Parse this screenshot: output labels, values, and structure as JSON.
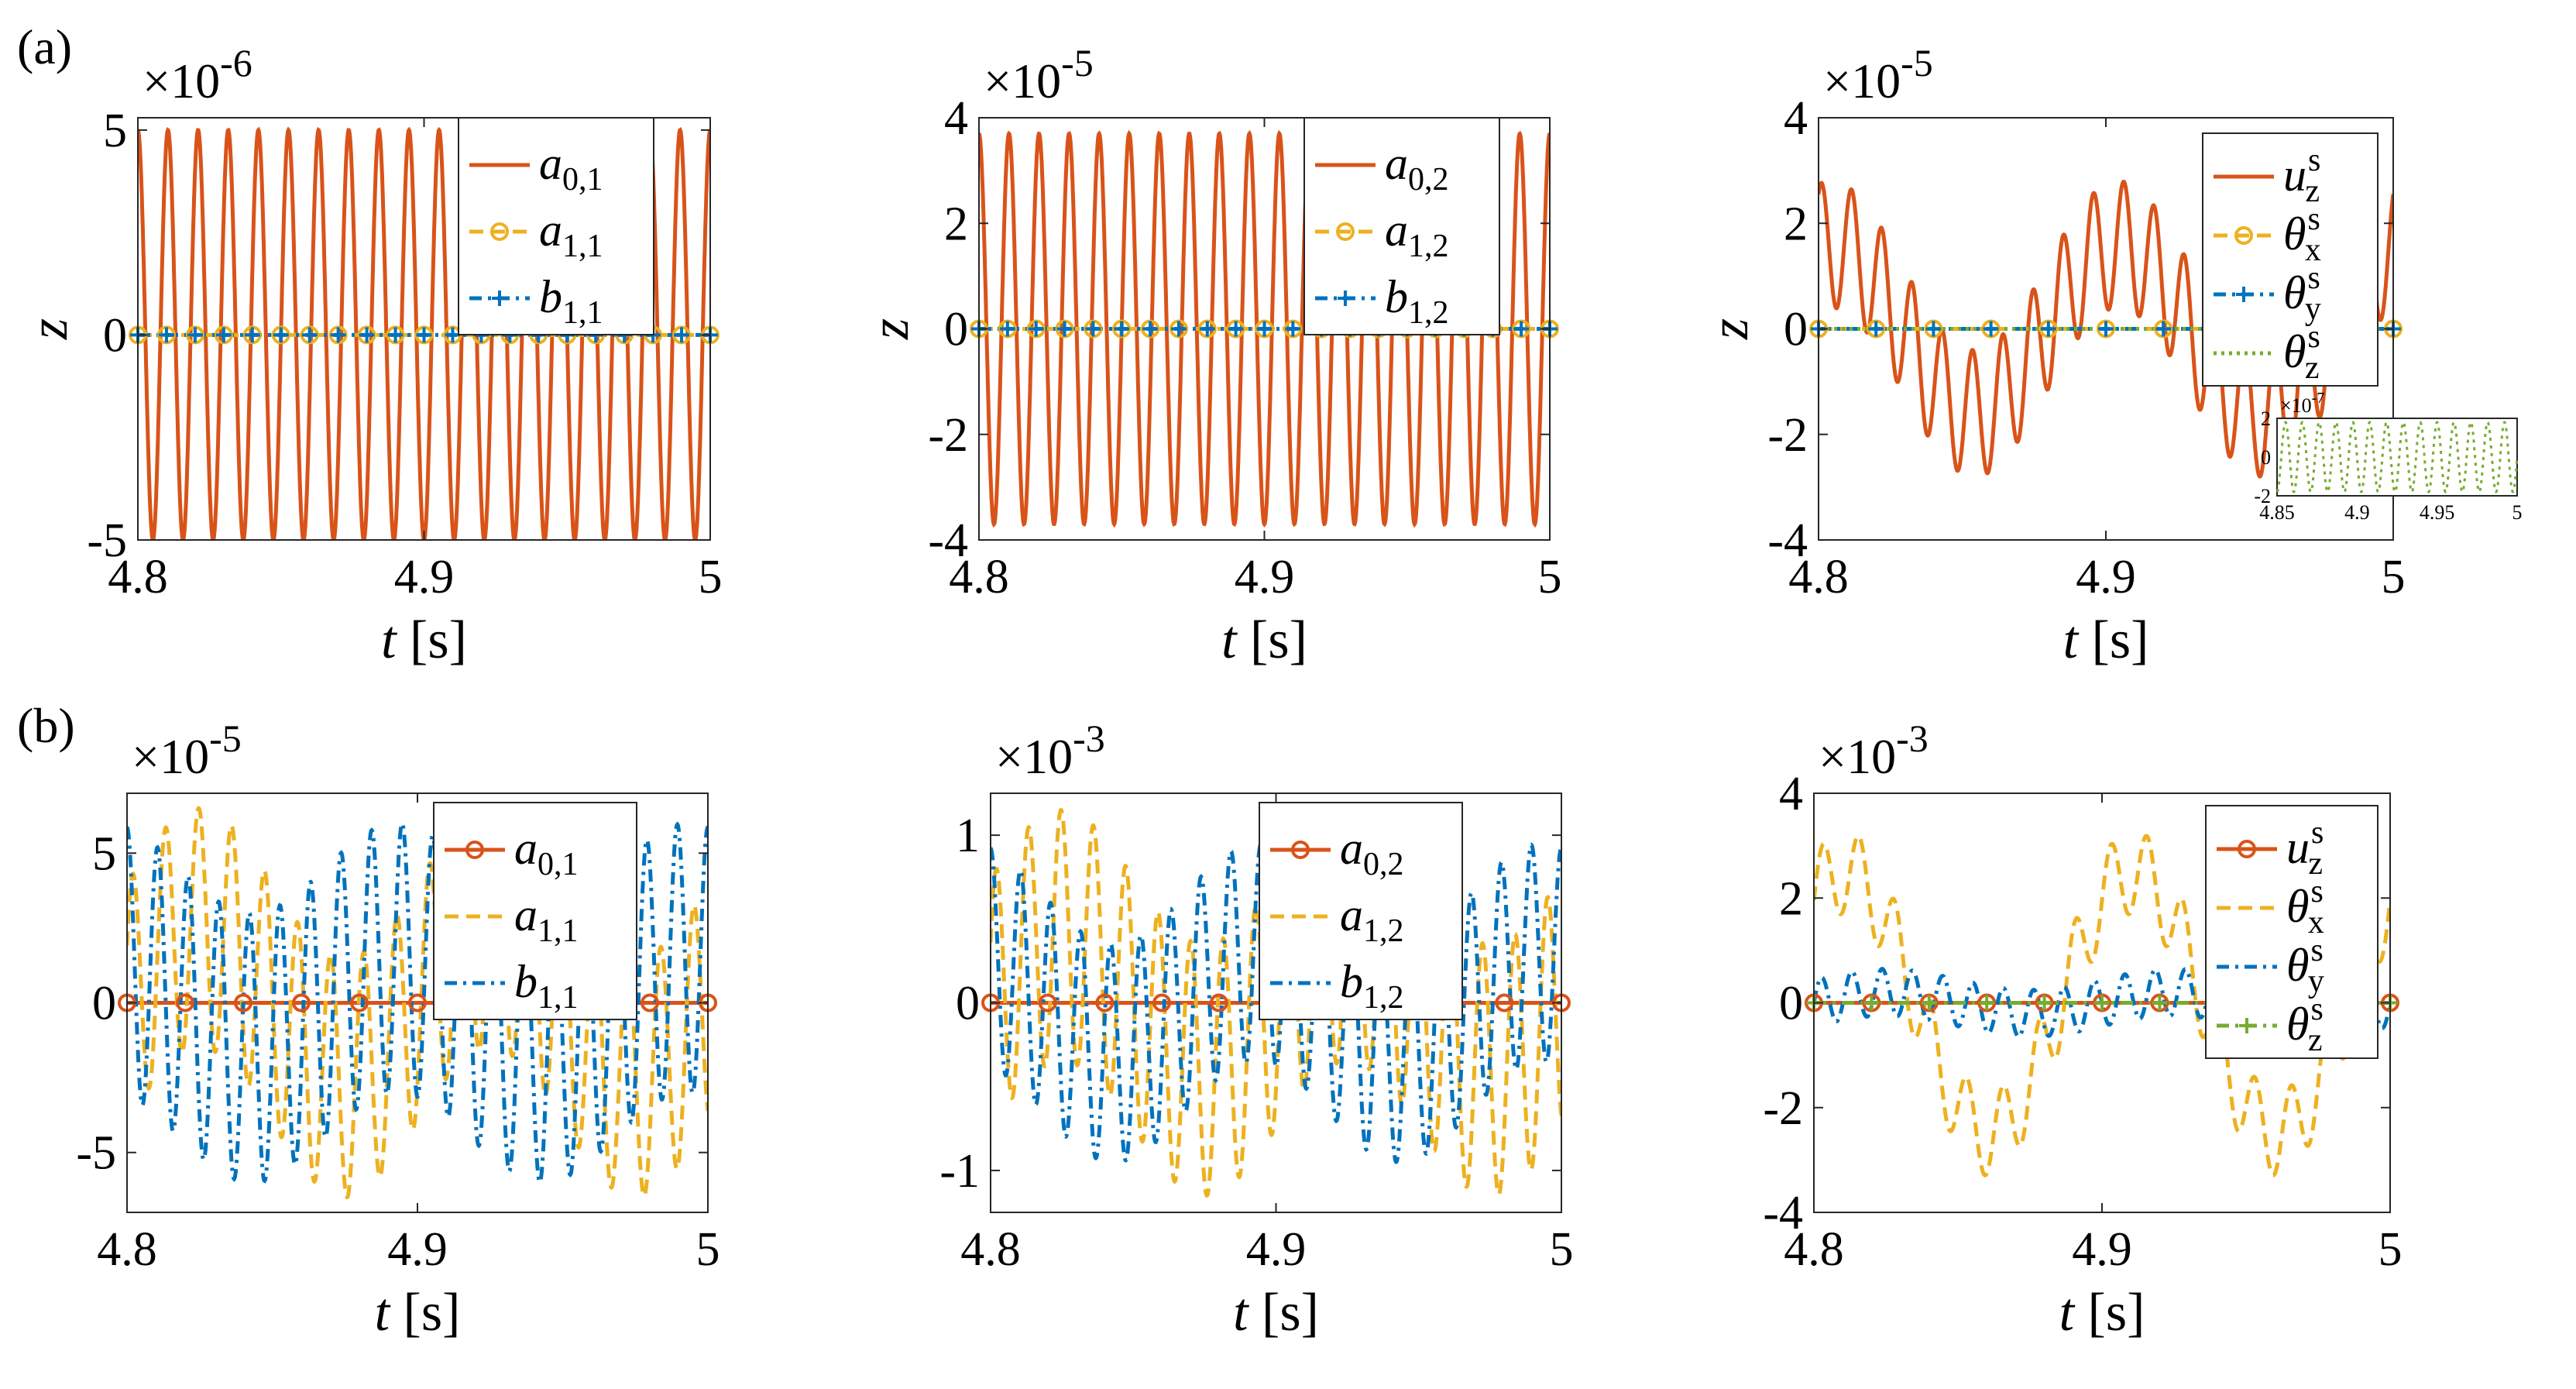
{
  "figure": {
    "panel_labels": [
      "(a)",
      "(b)"
    ]
  },
  "colors": {
    "red": "#d95319",
    "yellow": "#edb120",
    "blue": "#0072bd",
    "green": "#77ac30"
  },
  "chart_data": [
    {
      "id": "a1",
      "type": "line",
      "row": "a",
      "col": 1,
      "xlabel": "t",
      "xunit": "[s]",
      "ylabel": "z",
      "xlim": [
        4.8,
        5.0
      ],
      "ylim": [
        -5,
        5.3
      ],
      "xticks": [
        "4.8",
        "4.9",
        "5"
      ],
      "yticks": [
        -5,
        0,
        5
      ],
      "ytick_labels": [
        "-5",
        "0",
        "5"
      ],
      "exponent": "×10",
      "exponent_power": "-6",
      "series": [
        {
          "name": "a",
          "sub": "0,1",
          "sup": "",
          "color": "red",
          "style": "solid",
          "marker": "none",
          "amplitude": 5.0,
          "freq_hz": 95,
          "phase": 1.57
        },
        {
          "name": "a",
          "sub": "1,1",
          "sup": "",
          "color": "yellow",
          "style": "dashed",
          "marker": "circle",
          "amplitude": 0,
          "freq_hz": 0,
          "phase": 0
        },
        {
          "name": "b",
          "sub": "1,1",
          "sup": "",
          "color": "blue",
          "style": "dashdot",
          "marker": "plus",
          "amplitude": 0,
          "freq_hz": 0,
          "phase": 0
        }
      ]
    },
    {
      "id": "a2",
      "type": "line",
      "row": "a",
      "col": 2,
      "xlabel": "t",
      "xunit": "[s]",
      "ylabel": "z",
      "xlim": [
        4.8,
        5.0
      ],
      "ylim": [
        -4,
        4
      ],
      "xticks": [
        "4.8",
        "4.9",
        "5"
      ],
      "yticks": [
        -4,
        -2,
        0,
        2,
        4
      ],
      "ytick_labels": [
        "-4",
        "-2",
        "0",
        "2",
        "4"
      ],
      "exponent": "×10",
      "exponent_power": "-5",
      "series": [
        {
          "name": "a",
          "sub": "0,2",
          "sup": "",
          "color": "red",
          "style": "solid",
          "marker": "none",
          "amplitude": 3.7,
          "freq_hz": 95,
          "phase": 1.57
        },
        {
          "name": "a",
          "sub": "1,2",
          "sup": "",
          "color": "yellow",
          "style": "dashed",
          "marker": "circle",
          "amplitude": 0,
          "freq_hz": 0,
          "phase": 0
        },
        {
          "name": "b",
          "sub": "1,2",
          "sup": "",
          "color": "blue",
          "style": "dashdot",
          "marker": "plus",
          "amplitude": 0,
          "freq_hz": 0,
          "phase": 0
        }
      ]
    },
    {
      "id": "a3",
      "type": "line",
      "row": "a",
      "col": 3,
      "xlabel": "t",
      "xunit": "[s]",
      "ylabel": "z",
      "xlim": [
        4.8,
        5.0
      ],
      "ylim": [
        -4,
        4
      ],
      "xticks": [
        "4.8",
        "4.9",
        "5"
      ],
      "yticks": [
        -4,
        -2,
        0,
        2,
        4
      ],
      "ytick_labels": [
        "-4",
        "-2",
        "0",
        "2",
        "4"
      ],
      "exponent": "×10",
      "exponent_power": "-5",
      "series": [
        {
          "name": "u",
          "sub": "z",
          "sup": "s",
          "color": "red",
          "style": "solid",
          "marker": "none",
          "amplitude": 1.2,
          "freq_hz": 95,
          "phase": 1.0,
          "amplitude2": 1.6,
          "freq2_hz": 10,
          "phase2": 1.3
        },
        {
          "name": "θ",
          "sub": "x",
          "sup": "s",
          "color": "yellow",
          "style": "dashed",
          "marker": "circle",
          "amplitude": 0,
          "freq_hz": 0,
          "phase": 0
        },
        {
          "name": "θ",
          "sub": "y",
          "sup": "s",
          "color": "blue",
          "style": "dashdot",
          "marker": "plus",
          "amplitude": 0,
          "freq_hz": 0,
          "phase": 0
        },
        {
          "name": "θ",
          "sub": "z",
          "sup": "s",
          "color": "green",
          "style": "dotted",
          "marker": "none",
          "amplitude": 0,
          "freq_hz": 0,
          "phase": 0
        }
      ],
      "inset": {
        "xlim": [
          4.85,
          5.0
        ],
        "ylim": [
          -2,
          2
        ],
        "xticks": [
          "4.85",
          "4.9",
          "4.95",
          "5"
        ],
        "yticks": [
          -2,
          0,
          2
        ],
        "ytick_labels": [
          "-2",
          "0",
          "2"
        ],
        "exponent": "×10",
        "exponent_power": "-7",
        "series": {
          "color": "green",
          "style": "dotted",
          "amplitude": 1.8,
          "freq_hz": 95
        }
      }
    },
    {
      "id": "b1",
      "type": "line",
      "row": "b",
      "col": 1,
      "xlabel": "t",
      "xunit": "[s]",
      "ylabel": "",
      "xlim": [
        4.8,
        5.0
      ],
      "ylim": [
        -7,
        7
      ],
      "xticks": [
        "4.8",
        "4.9",
        "5"
      ],
      "yticks": [
        -5,
        0,
        5
      ],
      "ytick_labels": [
        "-5",
        "0",
        "5"
      ],
      "exponent": "×10",
      "exponent_power": "-5",
      "series": [
        {
          "name": "a",
          "sub": "0,1",
          "sup": "",
          "color": "red",
          "style": "solid",
          "marker": "circle",
          "amplitude": 0,
          "freq_hz": 0,
          "phase": 0
        },
        {
          "name": "a",
          "sub": "1,1",
          "sup": "",
          "color": "yellow",
          "style": "dashed",
          "marker": "none",
          "amplitude": 4.0,
          "freq_hz": 88,
          "phase": 0.5,
          "amplitude2": 2.5,
          "freq2_hz": 10,
          "phase2": 0.0
        },
        {
          "name": "b",
          "sub": "1,1",
          "sup": "",
          "color": "blue",
          "style": "dashdot",
          "marker": "none",
          "amplitude": 4.5,
          "freq_hz": 95,
          "phase": 1.57,
          "amplitude2": 1.5,
          "freq2_hz": 10,
          "phase2": 2.0
        }
      ]
    },
    {
      "id": "b2",
      "type": "line",
      "row": "b",
      "col": 2,
      "xlabel": "t",
      "xunit": "[s]",
      "ylabel": "",
      "xlim": [
        4.8,
        5.0
      ],
      "ylim": [
        -1.25,
        1.25
      ],
      "xticks": [
        "4.8",
        "4.9",
        "5"
      ],
      "yticks": [
        -1,
        0,
        1
      ],
      "ytick_labels": [
        "-1",
        "0",
        "1"
      ],
      "exponent": "×10",
      "exponent_power": "-3",
      "series": [
        {
          "name": "a",
          "sub": "0,2",
          "sup": "",
          "color": "red",
          "style": "solid",
          "marker": "circle",
          "amplitude": 0,
          "freq_hz": 0,
          "phase": 0
        },
        {
          "name": "a",
          "sub": "1,2",
          "sup": "",
          "color": "yellow",
          "style": "dashed",
          "marker": "none",
          "amplitude": 0.75,
          "freq_hz": 88,
          "phase": 0.5,
          "amplitude2": 0.4,
          "freq2_hz": 10,
          "phase2": 0.0
        },
        {
          "name": "b",
          "sub": "1,2",
          "sup": "",
          "color": "blue",
          "style": "dashdot",
          "marker": "none",
          "amplitude": 0.65,
          "freq_hz": 95,
          "phase": 1.57,
          "amplitude2": 0.3,
          "freq2_hz": 10,
          "phase2": 2.0
        }
      ]
    },
    {
      "id": "b3",
      "type": "line",
      "row": "b",
      "col": 3,
      "xlabel": "t",
      "xunit": "[s]",
      "ylabel": "",
      "xlim": [
        4.8,
        5.0
      ],
      "ylim": [
        -4,
        4
      ],
      "xticks": [
        "4.8",
        "4.9",
        "5"
      ],
      "yticks": [
        -4,
        -2,
        0,
        2,
        4
      ],
      "ytick_labels": [
        "-4",
        "-2",
        "0",
        "2",
        "4"
      ],
      "exponent": "×10",
      "exponent_power": "-3",
      "series": [
        {
          "name": "u",
          "sub": "z",
          "sup": "s",
          "color": "red",
          "style": "solid",
          "marker": "circle",
          "amplitude": 0,
          "freq_hz": 0,
          "phase": 0
        },
        {
          "name": "θ",
          "sub": "x",
          "sup": "s",
          "color": "yellow",
          "style": "dashed",
          "marker": "none",
          "amplitude": 0.8,
          "freq_hz": 80,
          "phase": 0.0,
          "amplitude2": 2.5,
          "freq2_hz": 10,
          "phase2": 0.9
        },
        {
          "name": "θ",
          "sub": "y",
          "sup": "s",
          "color": "blue",
          "style": "dashdot",
          "marker": "none",
          "amplitude": 0.45,
          "freq_hz": 95,
          "phase": 0.0,
          "amplitude2": 0.2,
          "freq2_hz": 10,
          "phase2": 0.0
        },
        {
          "name": "θ",
          "sub": "z",
          "sup": "s",
          "color": "green",
          "style": "dashdot",
          "marker": "plus",
          "amplitude": 0,
          "freq_hz": 0,
          "phase": 0
        }
      ]
    }
  ]
}
